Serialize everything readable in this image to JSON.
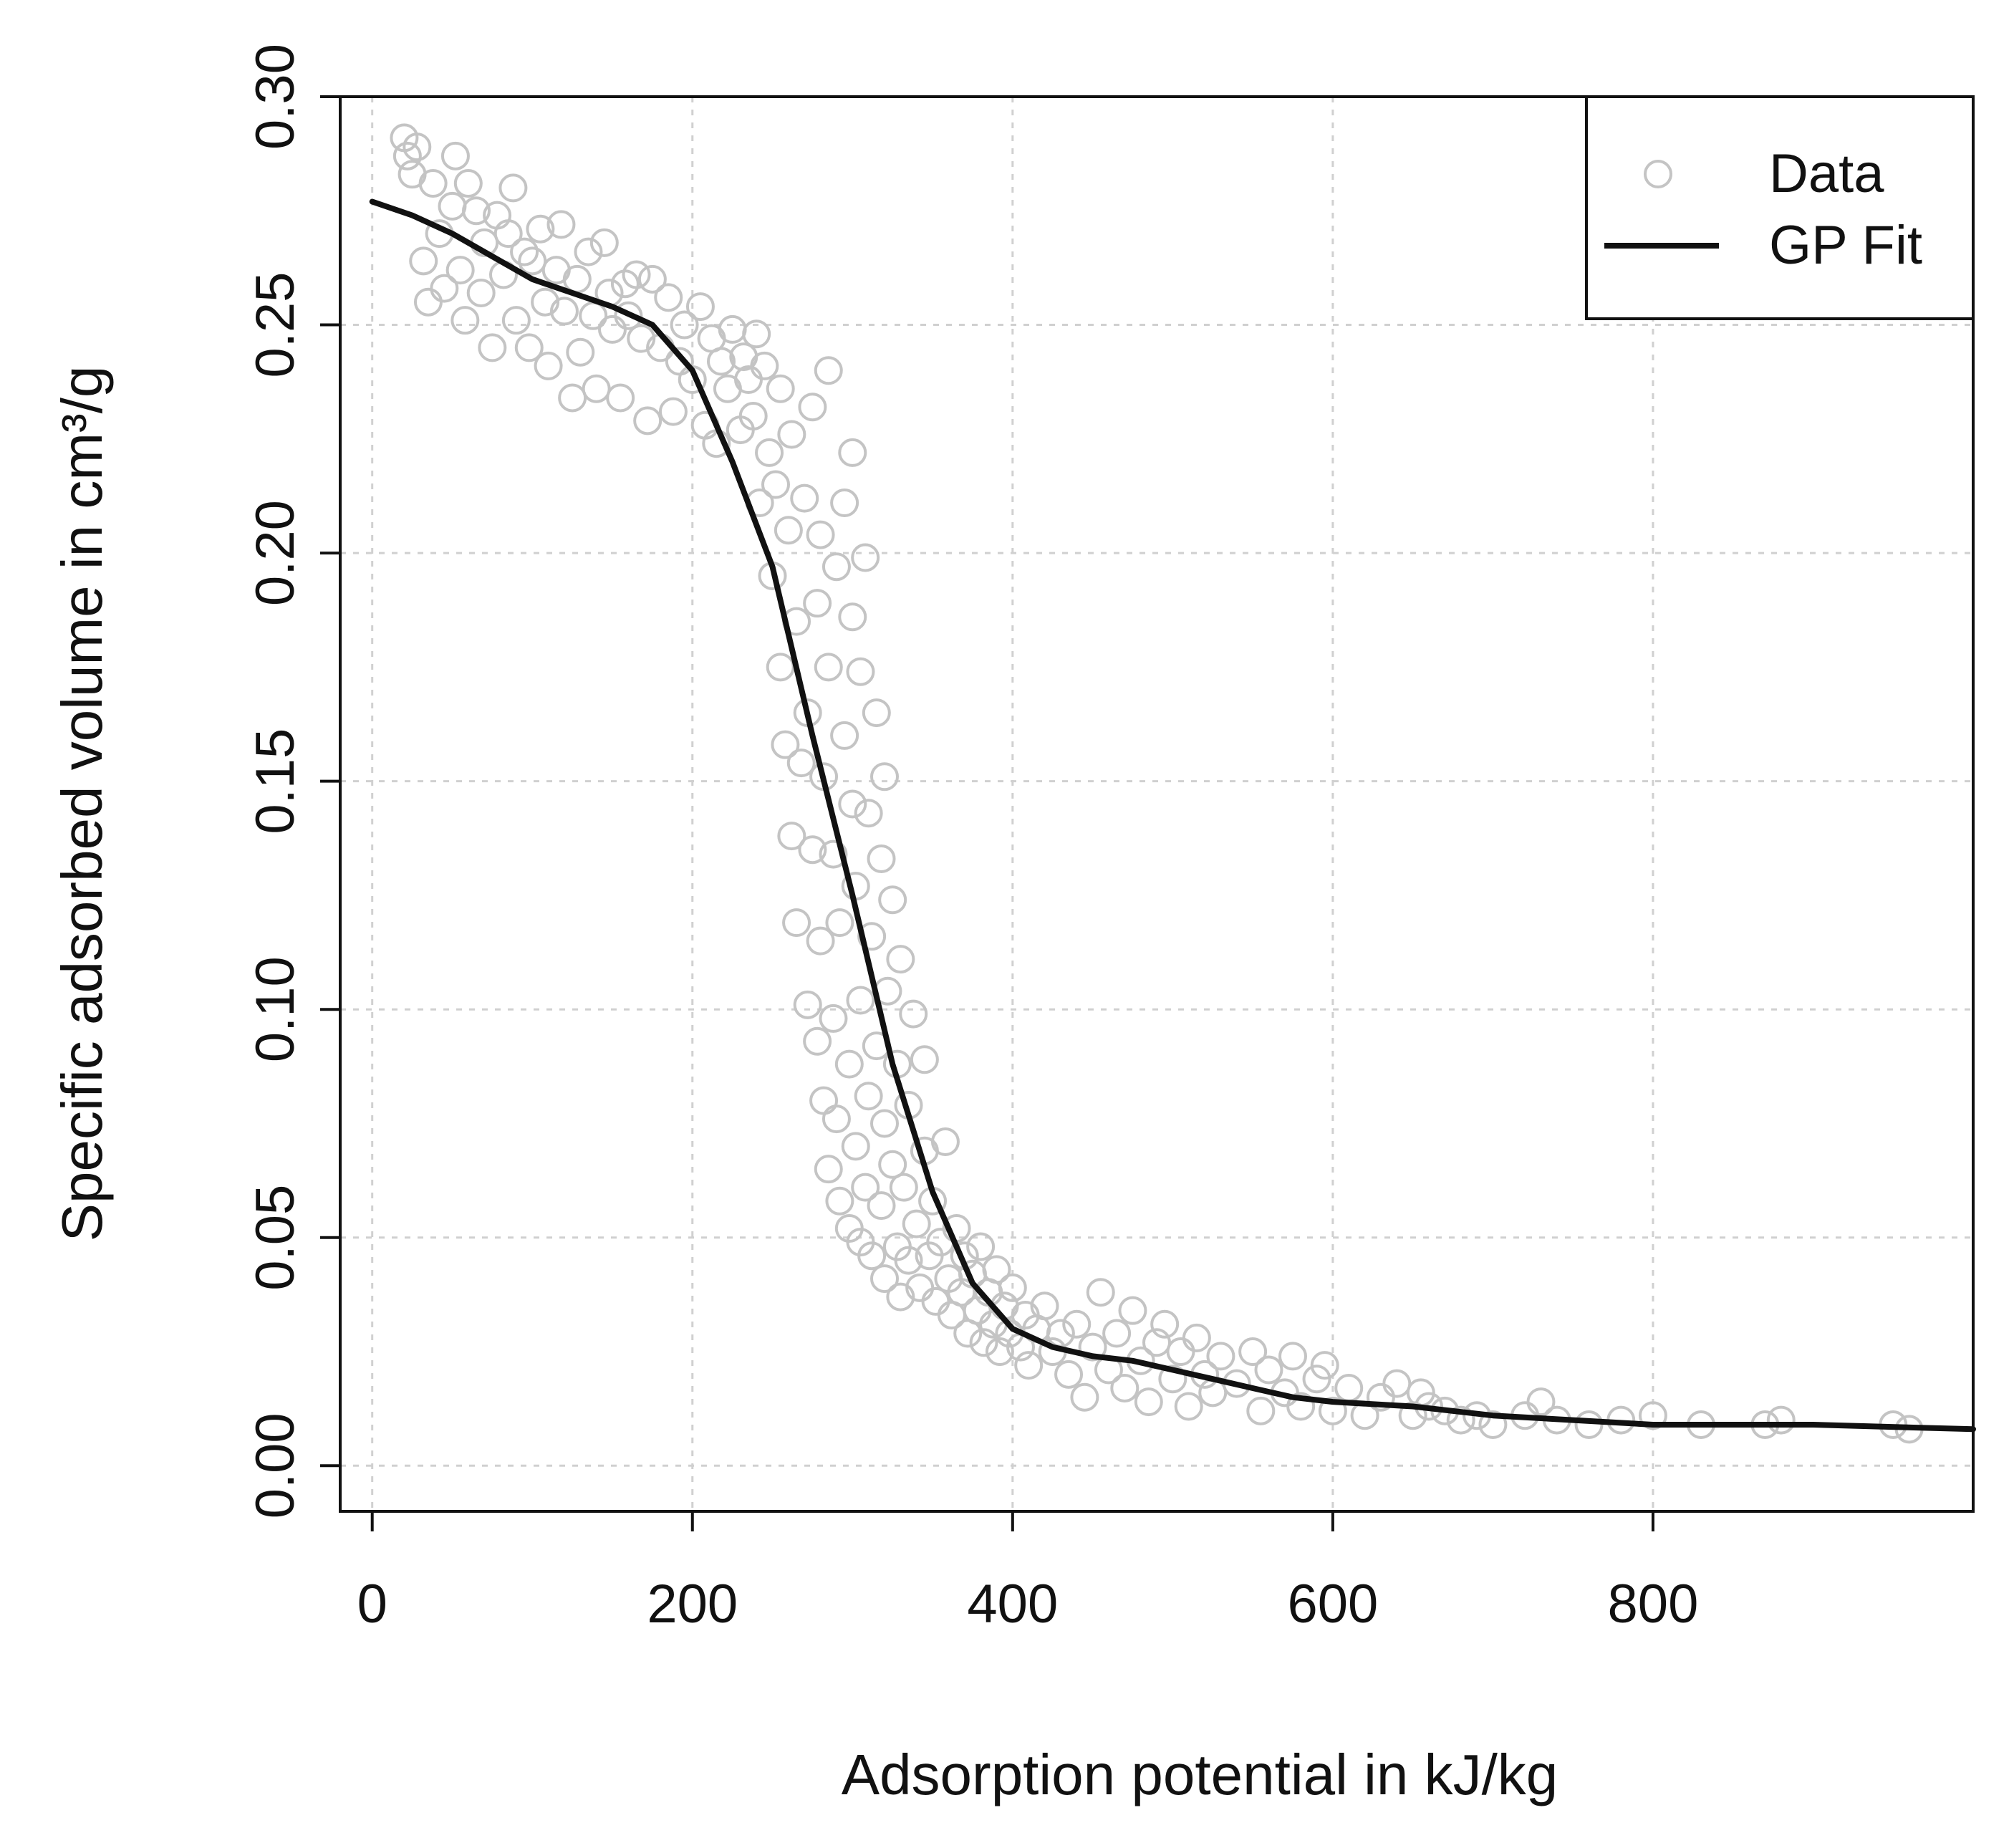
{
  "chart_data": {
    "type": "scatter",
    "title": "",
    "xlabel": "Adsorption potential in kJ/kg",
    "ylabel": "Specific adsorbed volume in cm³/g",
    "xlim": [
      -20,
      1000
    ],
    "ylim": [
      -0.01,
      0.3
    ],
    "grid": true,
    "legend_position": "top-right",
    "x_ticks": [
      0,
      200,
      400,
      600,
      800
    ],
    "x_tick_labels": [
      "0",
      "200",
      "400",
      "600",
      "800"
    ],
    "y_ticks": [
      0.0,
      0.05,
      0.1,
      0.15,
      0.2,
      0.25,
      0.3
    ],
    "y_tick_labels": [
      "0.00",
      "0.05",
      "0.10",
      "0.15",
      "0.20",
      "0.25",
      "0.30"
    ],
    "colors": {
      "data": "#c4c4c4",
      "fit": "#111111",
      "grid": "#d0d0d0",
      "frame": "#111111"
    },
    "legend": [
      {
        "label": "Data",
        "style": "circle",
        "color": "#c4c4c4"
      },
      {
        "label": "GP Fit",
        "style": "line",
        "color": "#111111"
      }
    ],
    "series": [
      {
        "name": "Data",
        "kind": "points",
        "points": [
          [
            20,
            0.291
          ],
          [
            22,
            0.287
          ],
          [
            25,
            0.283
          ],
          [
            28,
            0.289
          ],
          [
            32,
            0.264
          ],
          [
            35,
            0.255
          ],
          [
            38,
            0.281
          ],
          [
            42,
            0.27
          ],
          [
            45,
            0.258
          ],
          [
            50,
            0.276
          ],
          [
            52,
            0.287
          ],
          [
            55,
            0.262
          ],
          [
            58,
            0.251
          ],
          [
            60,
            0.281
          ],
          [
            65,
            0.275
          ],
          [
            68,
            0.257
          ],
          [
            70,
            0.268
          ],
          [
            75,
            0.245
          ],
          [
            78,
            0.274
          ],
          [
            82,
            0.261
          ],
          [
            85,
            0.27
          ],
          [
            88,
            0.28
          ],
          [
            90,
            0.251
          ],
          [
            95,
            0.266
          ],
          [
            98,
            0.245
          ],
          [
            100,
            0.264
          ],
          [
            105,
            0.271
          ],
          [
            108,
            0.255
          ],
          [
            110,
            0.241
          ],
          [
            115,
            0.262
          ],
          [
            118,
            0.272
          ],
          [
            120,
            0.253
          ],
          [
            125,
            0.234
          ],
          [
            128,
            0.26
          ],
          [
            130,
            0.244
          ],
          [
            135,
            0.266
          ],
          [
            138,
            0.252
          ],
          [
            140,
            0.236
          ],
          [
            145,
            0.268
          ],
          [
            148,
            0.257
          ],
          [
            150,
            0.249
          ],
          [
            155,
            0.234
          ],
          [
            158,
            0.259
          ],
          [
            160,
            0.252
          ],
          [
            165,
            0.261
          ],
          [
            168,
            0.247
          ],
          [
            172,
            0.229
          ],
          [
            175,
            0.26
          ],
          [
            180,
            0.245
          ],
          [
            185,
            0.256
          ],
          [
            188,
            0.231
          ],
          [
            192,
            0.242
          ],
          [
            195,
            0.25
          ],
          [
            200,
            0.238
          ],
          [
            205,
            0.254
          ],
          [
            208,
            0.228
          ],
          [
            212,
            0.247
          ],
          [
            215,
            0.224
          ],
          [
            218,
            0.242
          ],
          [
            222,
            0.236
          ],
          [
            225,
            0.249
          ],
          [
            230,
            0.227
          ],
          [
            232,
            0.243
          ],
          [
            235,
            0.238
          ],
          [
            238,
            0.23
          ],
          [
            240,
            0.248
          ],
          [
            242,
            0.211
          ],
          [
            245,
            0.241
          ],
          [
            248,
            0.222
          ],
          [
            250,
            0.195
          ],
          [
            252,
            0.215
          ],
          [
            255,
            0.175
          ],
          [
            255,
            0.236
          ],
          [
            258,
            0.158
          ],
          [
            260,
            0.205
          ],
          [
            262,
            0.138
          ],
          [
            262,
            0.226
          ],
          [
            265,
            0.119
          ],
          [
            265,
            0.185
          ],
          [
            268,
            0.154
          ],
          [
            270,
            0.212
          ],
          [
            272,
            0.101
          ],
          [
            272,
            0.165
          ],
          [
            275,
            0.135
          ],
          [
            275,
            0.232
          ],
          [
            278,
            0.093
          ],
          [
            278,
            0.189
          ],
          [
            280,
            0.115
          ],
          [
            280,
            0.204
          ],
          [
            282,
            0.08
          ],
          [
            282,
            0.151
          ],
          [
            285,
            0.065
          ],
          [
            285,
            0.175
          ],
          [
            285,
            0.24
          ],
          [
            288,
            0.098
          ],
          [
            288,
            0.134
          ],
          [
            290,
            0.076
          ],
          [
            290,
            0.197
          ],
          [
            292,
            0.119
          ],
          [
            292,
            0.058
          ],
          [
            295,
            0.16
          ],
          [
            295,
            0.211
          ],
          [
            298,
            0.088
          ],
          [
            298,
            0.052
          ],
          [
            300,
            0.145
          ],
          [
            300,
            0.186
          ],
          [
            300,
            0.222
          ],
          [
            302,
            0.07
          ],
          [
            302,
            0.127
          ],
          [
            305,
            0.049
          ],
          [
            305,
            0.102
          ],
          [
            305,
            0.174
          ],
          [
            308,
            0.061
          ],
          [
            308,
            0.199
          ],
          [
            310,
            0.081
          ],
          [
            310,
            0.143
          ],
          [
            312,
            0.046
          ],
          [
            312,
            0.116
          ],
          [
            315,
            0.092
          ],
          [
            315,
            0.165
          ],
          [
            318,
            0.057
          ],
          [
            318,
            0.133
          ],
          [
            320,
            0.041
          ],
          [
            320,
            0.075
          ],
          [
            320,
            0.151
          ],
          [
            322,
            0.104
          ],
          [
            325,
            0.066
          ],
          [
            325,
            0.124
          ],
          [
            328,
            0.048
          ],
          [
            328,
            0.088
          ],
          [
            330,
            0.037
          ],
          [
            330,
            0.111
          ],
          [
            332,
            0.061
          ],
          [
            335,
            0.079
          ],
          [
            335,
            0.045
          ],
          [
            338,
            0.099
          ],
          [
            340,
            0.053
          ],
          [
            342,
            0.039
          ],
          [
            345,
            0.069
          ],
          [
            345,
            0.089
          ],
          [
            348,
            0.046
          ],
          [
            350,
            0.058
          ],
          [
            352,
            0.036
          ],
          [
            355,
            0.049
          ],
          [
            358,
            0.071
          ],
          [
            360,
            0.041
          ],
          [
            362,
            0.033
          ],
          [
            365,
            0.052
          ],
          [
            368,
            0.038
          ],
          [
            370,
            0.046
          ],
          [
            372,
            0.029
          ],
          [
            375,
            0.042
          ],
          [
            378,
            0.034
          ],
          [
            380,
            0.048
          ],
          [
            382,
            0.027
          ],
          [
            385,
            0.038
          ],
          [
            388,
            0.031
          ],
          [
            390,
            0.043
          ],
          [
            392,
            0.025
          ],
          [
            395,
            0.035
          ],
          [
            398,
            0.029
          ],
          [
            400,
            0.039
          ],
          [
            405,
            0.026
          ],
          [
            408,
            0.033
          ],
          [
            410,
            0.022
          ],
          [
            415,
            0.03
          ],
          [
            420,
            0.035
          ],
          [
            425,
            0.025
          ],
          [
            430,
            0.029
          ],
          [
            435,
            0.02
          ],
          [
            440,
            0.031
          ],
          [
            445,
            0.015
          ],
          [
            450,
            0.026
          ],
          [
            455,
            0.038
          ],
          [
            460,
            0.021
          ],
          [
            465,
            0.029
          ],
          [
            470,
            0.017
          ],
          [
            475,
            0.034
          ],
          [
            480,
            0.023
          ],
          [
            485,
            0.014
          ],
          [
            490,
            0.027
          ],
          [
            495,
            0.031
          ],
          [
            500,
            0.019
          ],
          [
            505,
            0.025
          ],
          [
            510,
            0.013
          ],
          [
            515,
            0.028
          ],
          [
            520,
            0.02
          ],
          [
            525,
            0.016
          ],
          [
            530,
            0.024
          ],
          [
            540,
            0.018
          ],
          [
            550,
            0.025
          ],
          [
            555,
            0.012
          ],
          [
            560,
            0.021
          ],
          [
            570,
            0.016
          ],
          [
            575,
            0.024
          ],
          [
            580,
            0.013
          ],
          [
            590,
            0.019
          ],
          [
            595,
            0.022
          ],
          [
            600,
            0.012
          ],
          [
            610,
            0.017
          ],
          [
            620,
            0.011
          ],
          [
            630,
            0.015
          ],
          [
            640,
            0.018
          ],
          [
            650,
            0.011
          ],
          [
            655,
            0.016
          ],
          [
            660,
            0.013
          ],
          [
            670,
            0.012
          ],
          [
            680,
            0.01
          ],
          [
            690,
            0.011
          ],
          [
            700,
            0.009
          ],
          [
            720,
            0.011
          ],
          [
            730,
            0.014
          ],
          [
            740,
            0.01
          ],
          [
            760,
            0.009
          ],
          [
            780,
            0.01
          ],
          [
            800,
            0.011
          ],
          [
            830,
            0.009
          ],
          [
            870,
            0.009
          ],
          [
            880,
            0.01
          ],
          [
            950,
            0.009
          ],
          [
            960,
            0.008
          ]
        ]
      },
      {
        "name": "GP Fit",
        "kind": "line",
        "points": [
          [
            0,
            0.277
          ],
          [
            25,
            0.274
          ],
          [
            50,
            0.27
          ],
          [
            75,
            0.265
          ],
          [
            100,
            0.26
          ],
          [
            125,
            0.257
          ],
          [
            150,
            0.254
          ],
          [
            175,
            0.25
          ],
          [
            200,
            0.24
          ],
          [
            225,
            0.22
          ],
          [
            250,
            0.197
          ],
          [
            275,
            0.16
          ],
          [
            300,
            0.125
          ],
          [
            325,
            0.088
          ],
          [
            350,
            0.06
          ],
          [
            375,
            0.04
          ],
          [
            400,
            0.03
          ],
          [
            425,
            0.026
          ],
          [
            450,
            0.024
          ],
          [
            475,
            0.023
          ],
          [
            500,
            0.021
          ],
          [
            525,
            0.019
          ],
          [
            550,
            0.017
          ],
          [
            575,
            0.015
          ],
          [
            600,
            0.014
          ],
          [
            650,
            0.013
          ],
          [
            700,
            0.011
          ],
          [
            750,
            0.01
          ],
          [
            800,
            0.009
          ],
          [
            900,
            0.009
          ],
          [
            1000,
            0.008
          ]
        ]
      }
    ]
  }
}
